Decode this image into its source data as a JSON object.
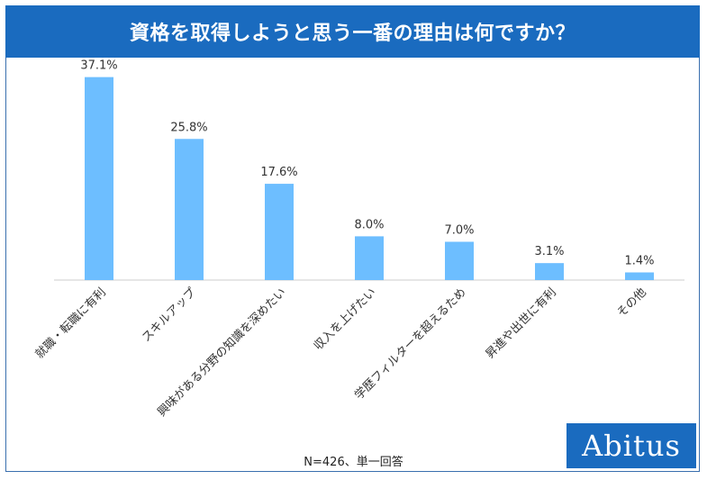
{
  "title": "資格を取得しようと思う一番の理由は何ですか？",
  "note": "N=426、単一回答",
  "logo_text": "Abitus",
  "colors": {
    "bar": "#6dbeff",
    "title_bg": "#1a6bbf",
    "axis": "#cccccc",
    "text": "#333333"
  },
  "chart_data": {
    "type": "bar",
    "title": "資格を取得しようと思う一番の理由は何ですか？",
    "categories": [
      "就職・転職に有利",
      "スキルアップ",
      "興味がある分野の知識を深めたい",
      "収入を上げたい",
      "学歴フィルターを超えるため",
      "昇進や出世に有利",
      "その他"
    ],
    "values": [
      37.1,
      25.8,
      17.6,
      8.0,
      7.0,
      3.1,
      1.4
    ],
    "labels": [
      "37.1%",
      "25.8%",
      "17.6%",
      "8.0%",
      "7.0%",
      "3.1%",
      "1.4%"
    ],
    "unit": "%",
    "ylim": [
      0,
      40
    ],
    "xlabel": "",
    "ylabel": ""
  }
}
